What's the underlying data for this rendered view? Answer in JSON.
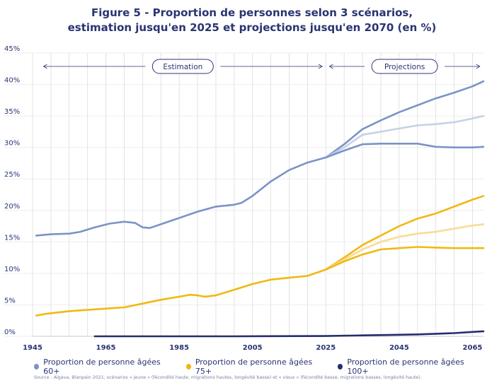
{
  "title_line1": "Figure 5 - Proportion de personnes selon 3 scénarios,",
  "title_line2": "estimation jusqu'en 2025 et projections jusqu'en 2070 (en %)",
  "annotations": {
    "estimation": "Estimation",
    "projections": "Projections"
  },
  "source": "Source : Algava, Blanpain 2021, scénarios « jeune » (fécondité haute, migrations hautes, longévité basse) et « vieux » (fécondité basse, migrations basses, longévité haute).",
  "colors": {
    "s60": "#7b93c6",
    "s60_light": "#c6d1e8",
    "s75": "#f1b812",
    "s75_light": "#f7dc95",
    "s100": "#242d70",
    "grid": "#dcdcdc",
    "axis": "#2a3472"
  },
  "chart_data": {
    "type": "line",
    "xlim": [
      1945,
      2068
    ],
    "ylim": [
      0,
      45
    ],
    "x_ticks": [
      1945,
      1965,
      1985,
      2005,
      2025,
      2045,
      2065
    ],
    "x_tick_labels": [
      "1945",
      "1965",
      "1985",
      "2005",
      "2025",
      "2045",
      "2065"
    ],
    "y_ticks": [
      0,
      5,
      10,
      15,
      20,
      25,
      30,
      35,
      40,
      45
    ],
    "y_tick_labels": [
      "0%",
      "5%",
      "10%",
      "15%",
      "20%",
      "25%",
      "30%",
      "35%",
      "40%",
      "45%"
    ],
    "grid": "vertical and horizontal",
    "legend": "bottom",
    "series": [
      {
        "name": "Proportion de personne âgées 60+",
        "color": "s60",
        "points": [
          [
            1946,
            16.0
          ],
          [
            1950,
            16.2
          ],
          [
            1955,
            16.3
          ],
          [
            1958,
            16.6
          ],
          [
            1962,
            17.3
          ],
          [
            1966,
            17.9
          ],
          [
            1970,
            18.2
          ],
          [
            1973,
            18.0
          ],
          [
            1975,
            17.3
          ],
          [
            1977,
            17.2
          ],
          [
            1980,
            17.8
          ],
          [
            1985,
            18.8
          ],
          [
            1990,
            19.8
          ],
          [
            1995,
            20.6
          ],
          [
            2000,
            20.9
          ],
          [
            2002,
            21.2
          ],
          [
            2005,
            22.3
          ],
          [
            2010,
            24.6
          ],
          [
            2015,
            26.4
          ],
          [
            2020,
            27.6
          ],
          [
            2025,
            28.4
          ]
        ]
      },
      {
        "name": "Proportion de personne âgées 60+ (scénario vieux)",
        "color": "s60",
        "points": [
          [
            2025,
            28.4
          ],
          [
            2030,
            30.5
          ],
          [
            2035,
            32.9
          ],
          [
            2040,
            34.3
          ],
          [
            2045,
            35.6
          ],
          [
            2050,
            36.7
          ],
          [
            2055,
            37.8
          ],
          [
            2060,
            38.7
          ],
          [
            2065,
            39.7
          ],
          [
            2068,
            40.5
          ]
        ]
      },
      {
        "name": "Proportion de personne âgées 60+ (scénario central)",
        "color": "s60_light",
        "points": [
          [
            2025,
            28.4
          ],
          [
            2030,
            30.0
          ],
          [
            2035,
            32.0
          ],
          [
            2040,
            32.5
          ],
          [
            2045,
            33.0
          ],
          [
            2050,
            33.5
          ],
          [
            2055,
            33.7
          ],
          [
            2060,
            34.0
          ],
          [
            2065,
            34.6
          ],
          [
            2068,
            35.0
          ]
        ]
      },
      {
        "name": "Proportion de personne âgées 60+ (scénario jeune)",
        "color": "s60",
        "points": [
          [
            2025,
            28.4
          ],
          [
            2030,
            29.5
          ],
          [
            2035,
            30.5
          ],
          [
            2040,
            30.6
          ],
          [
            2045,
            30.6
          ],
          [
            2050,
            30.6
          ],
          [
            2055,
            30.1
          ],
          [
            2060,
            30.0
          ],
          [
            2065,
            30.0
          ],
          [
            2068,
            30.1
          ]
        ]
      },
      {
        "name": "Proportion de personne âgées 75+",
        "color": "s75",
        "points": [
          [
            1946,
            3.3
          ],
          [
            1949,
            3.6
          ],
          [
            1955,
            4.0
          ],
          [
            1960,
            4.2
          ],
          [
            1965,
            4.4
          ],
          [
            1970,
            4.6
          ],
          [
            1975,
            5.2
          ],
          [
            1980,
            5.8
          ],
          [
            1985,
            6.3
          ],
          [
            1988,
            6.6
          ],
          [
            1990,
            6.5
          ],
          [
            1992,
            6.3
          ],
          [
            1995,
            6.5
          ],
          [
            2000,
            7.4
          ],
          [
            2005,
            8.3
          ],
          [
            2010,
            9.0
          ],
          [
            2015,
            9.3
          ],
          [
            2020,
            9.6
          ],
          [
            2025,
            10.6
          ]
        ]
      },
      {
        "name": "Proportion de personne âgées 75+ (scénario vieux)",
        "color": "s75",
        "points": [
          [
            2025,
            10.6
          ],
          [
            2030,
            12.5
          ],
          [
            2035,
            14.5
          ],
          [
            2040,
            16.0
          ],
          [
            2045,
            17.5
          ],
          [
            2050,
            18.7
          ],
          [
            2055,
            19.5
          ],
          [
            2060,
            20.6
          ],
          [
            2065,
            21.7
          ],
          [
            2068,
            22.3
          ]
        ]
      },
      {
        "name": "Proportion de personne âgées 75+ (scénario central)",
        "color": "s75_light",
        "points": [
          [
            2025,
            10.6
          ],
          [
            2030,
            12.2
          ],
          [
            2035,
            13.8
          ],
          [
            2040,
            15.0
          ],
          [
            2045,
            15.8
          ],
          [
            2050,
            16.3
          ],
          [
            2055,
            16.6
          ],
          [
            2060,
            17.1
          ],
          [
            2065,
            17.6
          ],
          [
            2068,
            17.8
          ]
        ]
      },
      {
        "name": "Proportion de personne âgées 75+ (scénario jeune)",
        "color": "s75",
        "points": [
          [
            2025,
            10.6
          ],
          [
            2030,
            11.9
          ],
          [
            2035,
            13.0
          ],
          [
            2040,
            13.8
          ],
          [
            2045,
            14.0
          ],
          [
            2050,
            14.2
          ],
          [
            2055,
            14.1
          ],
          [
            2060,
            14.0
          ],
          [
            2065,
            14.0
          ],
          [
            2068,
            14.0
          ]
        ]
      },
      {
        "name": "Proportion de personne âgées 100+",
        "color": "s100",
        "points": [
          [
            1962,
            0.0
          ],
          [
            1980,
            0.0
          ],
          [
            2000,
            0.0
          ],
          [
            2025,
            0.05
          ],
          [
            2035,
            0.15
          ],
          [
            2045,
            0.25
          ],
          [
            2050,
            0.3
          ],
          [
            2055,
            0.4
          ],
          [
            2060,
            0.5
          ],
          [
            2065,
            0.7
          ],
          [
            2068,
            0.8
          ]
        ]
      }
    ]
  },
  "legend": [
    {
      "label": "Proportion de personne âgées 60+",
      "color": "#7b93c6"
    },
    {
      "label": "Proportion de personne âgées 75+",
      "color": "#f1b812"
    },
    {
      "label": "Proportion de personne âgées 100+",
      "color": "#242d70"
    }
  ]
}
